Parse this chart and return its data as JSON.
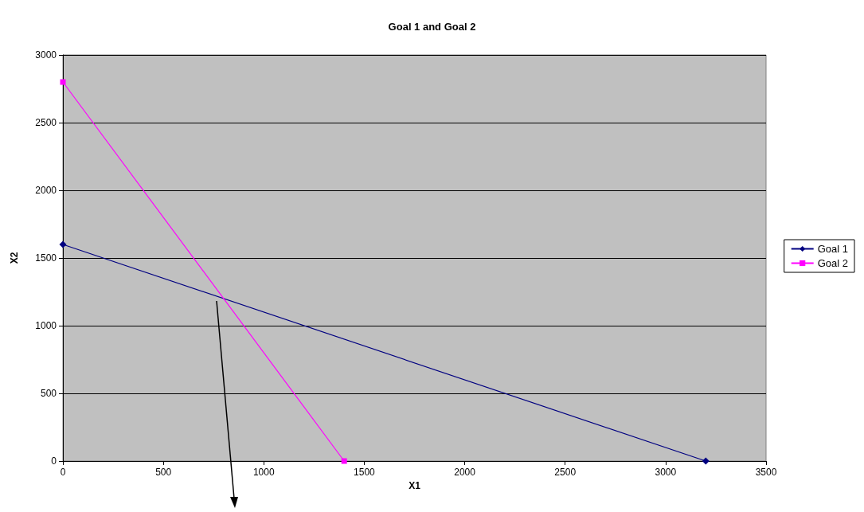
{
  "chart_data": {
    "type": "line",
    "title": "Goal 1 and Goal 2",
    "xlabel": "X1",
    "ylabel": "X2",
    "series": [
      {
        "name": "Goal 1",
        "color": "#000080",
        "x": [
          0,
          3200
        ],
        "values": [
          1600,
          0
        ],
        "marker": "diamond"
      },
      {
        "name": "Goal 2",
        "color": "#ff00ff",
        "x": [
          0,
          1400
        ],
        "values": [
          2800,
          0
        ],
        "marker": "square"
      }
    ],
    "xlim": [
      0,
      3500
    ],
    "xticks": [
      0,
      500,
      1000,
      1500,
      2000,
      2500,
      3000,
      3500
    ],
    "ylim": [
      0,
      3000
    ],
    "yticks": [
      0,
      500,
      1000,
      1500,
      2000,
      2500,
      3000
    ],
    "grid": "y",
    "legend": "right",
    "line_style": "solid"
  }
}
